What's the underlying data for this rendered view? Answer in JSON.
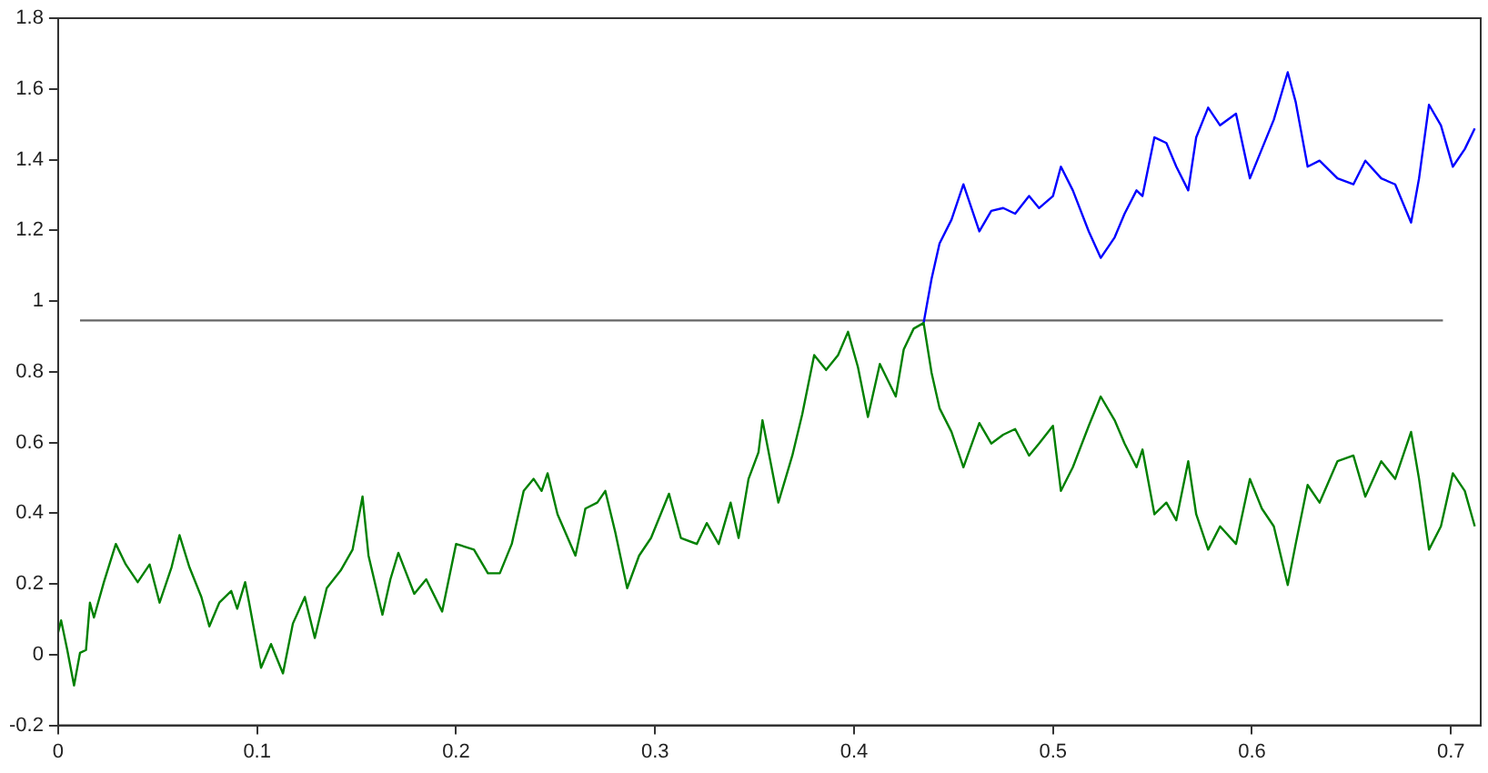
{
  "chart_data": {
    "type": "line",
    "xlim": [
      0,
      0.715
    ],
    "ylim": [
      -0.2,
      1.8
    ],
    "xticks": [
      0,
      0.1,
      0.2,
      0.3,
      0.4,
      0.5,
      0.6,
      0.7
    ],
    "yticks": [
      -0.2,
      0,
      0.2,
      0.4,
      0.6,
      0.8,
      1,
      1.2,
      1.4,
      1.6,
      1.8
    ],
    "grid": false,
    "legend": false,
    "marker": "none",
    "line_style": "solid",
    "series": [
      {
        "color": "#008000",
        "x": [
          0,
          0.0015,
          0.0046,
          0.008,
          0.011,
          0.014,
          0.016,
          0.018,
          0.023,
          0.029,
          0.034,
          0.04,
          0.046,
          0.051,
          0.057,
          0.061,
          0.066,
          0.072,
          0.076,
          0.081,
          0.087,
          0.09,
          0.094,
          0.096,
          0.102,
          0.107,
          0.113,
          0.118,
          0.124,
          0.129,
          0.135,
          0.142,
          0.148,
          0.153,
          0.156,
          0.163,
          0.167,
          0.171,
          0.179,
          0.185,
          0.193,
          0.2,
          0.209,
          0.216,
          0.222,
          0.228,
          0.234,
          0.239,
          0.243,
          0.246,
          0.251,
          0.26,
          0.265,
          0.271,
          0.275,
          0.28,
          0.286,
          0.292,
          0.298,
          0.307,
          0.313,
          0.321,
          0.326,
          0.332,
          0.338,
          0.342,
          0.347,
          0.352,
          0.354,
          0.362,
          0.369,
          0.374,
          0.38,
          0.386,
          0.392,
          0.397,
          0.402,
          0.407,
          0.413,
          0.421,
          0.425,
          0.43,
          0.435,
          0.439,
          0.443,
          0.449,
          0.455,
          0.463,
          0.469,
          0.475,
          0.481,
          0.488,
          0.493,
          0.5,
          0.504,
          0.51,
          0.518,
          0.524,
          0.531,
          0.536,
          0.542,
          0.545,
          0.551,
          0.557,
          0.562,
          0.568,
          0.572,
          0.578,
          0.584,
          0.592,
          0.599,
          0.605,
          0.611,
          0.618,
          0.622,
          0.628,
          0.634,
          0.643,
          0.651,
          0.657,
          0.665,
          0.672,
          0.68,
          0.684,
          0.689,
          0.695,
          0.701,
          0.707,
          0.712
        ],
        "values": [
          0.063,
          0.097,
          0.013,
          -0.087,
          0.005,
          0.013,
          0.147,
          0.105,
          0.205,
          0.313,
          0.255,
          0.205,
          0.255,
          0.147,
          0.247,
          0.338,
          0.247,
          0.163,
          0.08,
          0.147,
          0.18,
          0.13,
          0.205,
          0.147,
          -0.037,
          0.03,
          -0.053,
          0.088,
          0.163,
          0.047,
          0.188,
          0.238,
          0.297,
          0.447,
          0.28,
          0.113,
          0.213,
          0.288,
          0.172,
          0.213,
          0.122,
          0.313,
          0.297,
          0.23,
          0.23,
          0.313,
          0.463,
          0.497,
          0.463,
          0.513,
          0.397,
          0.28,
          0.413,
          0.43,
          0.463,
          0.347,
          0.188,
          0.28,
          0.33,
          0.455,
          0.33,
          0.313,
          0.372,
          0.313,
          0.43,
          0.33,
          0.497,
          0.572,
          0.663,
          0.43,
          0.563,
          0.68,
          0.847,
          0.805,
          0.847,
          0.913,
          0.813,
          0.672,
          0.822,
          0.73,
          0.863,
          0.922,
          0.938,
          0.797,
          0.697,
          0.63,
          0.53,
          0.655,
          0.597,
          0.622,
          0.638,
          0.563,
          0.597,
          0.647,
          0.463,
          0.53,
          0.647,
          0.73,
          0.663,
          0.597,
          0.53,
          0.58,
          0.397,
          0.43,
          0.38,
          0.547,
          0.397,
          0.297,
          0.363,
          0.313,
          0.497,
          0.413,
          0.363,
          0.197,
          0.313,
          0.48,
          0.43,
          0.547,
          0.563,
          0.447,
          0.547,
          0.497,
          0.63,
          0.497,
          0.297,
          0.363,
          0.513,
          0.463,
          0.363
        ]
      },
      {
        "color": "#0000ff",
        "x": [
          0.435,
          0.439,
          0.443,
          0.449,
          0.455,
          0.463,
          0.469,
          0.475,
          0.481,
          0.488,
          0.493,
          0.5,
          0.504,
          0.51,
          0.518,
          0.524,
          0.531,
          0.536,
          0.542,
          0.545,
          0.551,
          0.557,
          0.562,
          0.568,
          0.572,
          0.578,
          0.584,
          0.592,
          0.599,
          0.605,
          0.611,
          0.618,
          0.622,
          0.628,
          0.634,
          0.643,
          0.651,
          0.657,
          0.665,
          0.672,
          0.68,
          0.684,
          0.689,
          0.695,
          0.701,
          0.707,
          0.712
        ],
        "values": [
          0.938,
          1.063,
          1.163,
          1.23,
          1.33,
          1.197,
          1.255,
          1.263,
          1.247,
          1.297,
          1.263,
          1.297,
          1.38,
          1.313,
          1.197,
          1.122,
          1.18,
          1.247,
          1.313,
          1.297,
          1.463,
          1.447,
          1.38,
          1.313,
          1.463,
          1.547,
          1.497,
          1.53,
          1.347,
          1.43,
          1.513,
          1.647,
          1.563,
          1.38,
          1.397,
          1.347,
          1.33,
          1.397,
          1.347,
          1.33,
          1.222,
          1.347,
          1.555,
          1.497,
          1.38,
          1.43,
          1.488
        ]
      },
      {
        "color": "#666666",
        "x": [
          0.011,
          0.696
        ],
        "values": [
          0.945,
          0.945
        ]
      }
    ]
  }
}
